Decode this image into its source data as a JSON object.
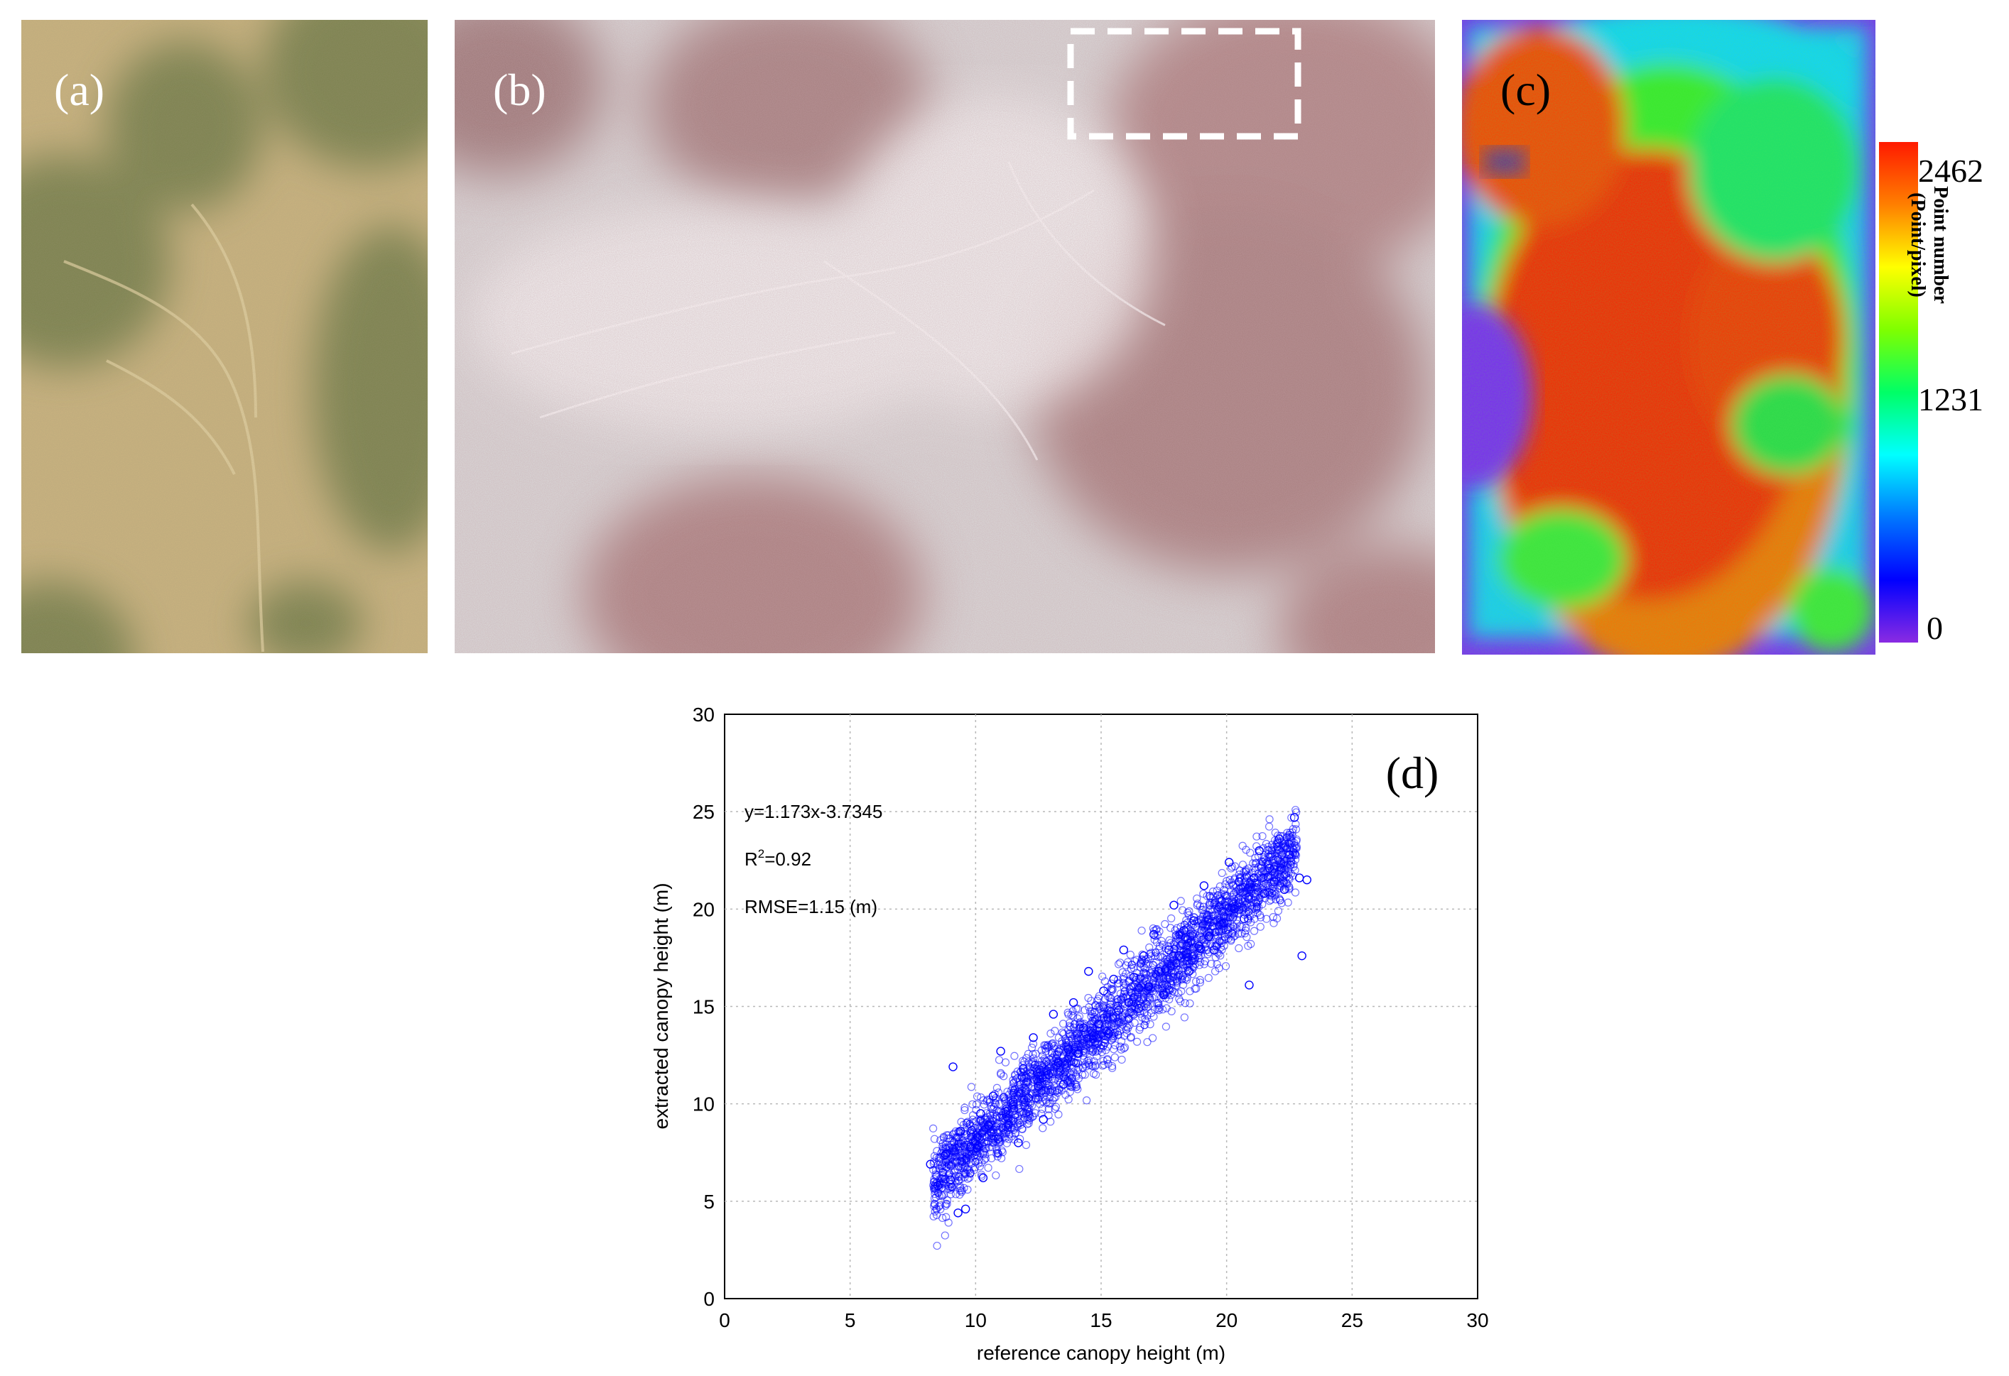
{
  "panels": {
    "a": {
      "label": "(a)"
    },
    "b": {
      "label": "(b)"
    },
    "c": {
      "label": "(c)",
      "colorbar": {
        "title": "Point number\n(Point/pixel)",
        "ticks": [
          "2462",
          "1231",
          "0"
        ],
        "colors": [
          "#ff1a00",
          "#ff7f00",
          "#ffff00",
          "#7fff00",
          "#00ff66",
          "#00ffff",
          "#0077ff",
          "#0000ff",
          "#8a2be2"
        ]
      }
    },
    "d": {
      "label": "(d)"
    }
  },
  "chart_data": {
    "type": "scatter",
    "xlabel": "reference canopy height (m)",
    "ylabel": "extracted canopy height (m)",
    "xlim": [
      0,
      30
    ],
    "ylim": [
      0,
      30
    ],
    "xticks": [
      0,
      5,
      10,
      15,
      20,
      25,
      30
    ],
    "yticks": [
      0,
      5,
      10,
      15,
      20,
      25,
      30
    ],
    "grid": true,
    "marker_color": "#0000ff",
    "annotations": {
      "equation": "y=1.173x-3.7345",
      "r2_prefix": "R",
      "r2_sup": "2",
      "r2_value": "=0.92",
      "rmse": "RMSE=1.15 (m)"
    },
    "fit": {
      "slope": 1.173,
      "intercept": -3.7345
    },
    "points": [
      [
        8.2,
        6.9
      ],
      [
        8.5,
        5.8
      ],
      [
        8.8,
        7.4
      ],
      [
        9.0,
        6.1
      ],
      [
        9.1,
        11.9
      ],
      [
        9.3,
        4.4
      ],
      [
        9.4,
        8.6
      ],
      [
        9.6,
        4.6
      ],
      [
        9.8,
        7.8
      ],
      [
        10.0,
        8.1
      ],
      [
        10.2,
        9.5
      ],
      [
        10.3,
        6.2
      ],
      [
        10.5,
        8.9
      ],
      [
        10.7,
        10.4
      ],
      [
        10.9,
        8.2
      ],
      [
        11.0,
        12.7
      ],
      [
        11.2,
        9.6
      ],
      [
        11.5,
        10.1
      ],
      [
        11.7,
        8.0
      ],
      [
        11.9,
        11.8
      ],
      [
        12.1,
        10.3
      ],
      [
        12.3,
        13.4
      ],
      [
        12.5,
        10.9
      ],
      [
        12.7,
        9.2
      ],
      [
        12.9,
        11.5
      ],
      [
        13.1,
        14.6
      ],
      [
        13.3,
        12.1
      ],
      [
        13.5,
        11.0
      ],
      [
        13.7,
        12.8
      ],
      [
        13.9,
        15.2
      ],
      [
        14.1,
        12.6
      ],
      [
        14.3,
        13.9
      ],
      [
        14.5,
        16.8
      ],
      [
        14.7,
        13.5
      ],
      [
        14.9,
        14.1
      ],
      [
        15.1,
        15.8
      ],
      [
        15.3,
        13.6
      ],
      [
        15.5,
        16.4
      ],
      [
        15.7,
        14.8
      ],
      [
        15.9,
        17.9
      ],
      [
        16.1,
        15.2
      ],
      [
        16.3,
        16.5
      ],
      [
        16.5,
        14.9
      ],
      [
        16.7,
        17.6
      ],
      [
        16.9,
        16.0
      ],
      [
        17.1,
        18.7
      ],
      [
        17.3,
        16.8
      ],
      [
        17.5,
        15.6
      ],
      [
        17.7,
        17.9
      ],
      [
        17.9,
        20.2
      ],
      [
        18.1,
        17.6
      ],
      [
        18.3,
        18.9
      ],
      [
        18.5,
        16.8
      ],
      [
        18.7,
        19.4
      ],
      [
        18.9,
        18.1
      ],
      [
        19.1,
        21.2
      ],
      [
        19.3,
        18.6
      ],
      [
        19.5,
        17.9
      ],
      [
        19.7,
        20.1
      ],
      [
        19.9,
        19.3
      ],
      [
        20.1,
        22.4
      ],
      [
        20.3,
        20.0
      ],
      [
        20.5,
        21.4
      ],
      [
        20.7,
        19.5
      ],
      [
        20.9,
        16.1
      ],
      [
        21.1,
        21.6
      ],
      [
        21.3,
        23.0
      ],
      [
        21.5,
        20.8
      ],
      [
        21.7,
        22.1
      ],
      [
        21.9,
        21.4
      ],
      [
        22.1,
        23.6
      ],
      [
        22.3,
        21.0
      ],
      [
        22.5,
        22.8
      ],
      [
        22.7,
        24.7
      ],
      [
        22.9,
        21.6
      ],
      [
        23.0,
        17.6
      ],
      [
        23.2,
        21.5
      ]
    ]
  }
}
